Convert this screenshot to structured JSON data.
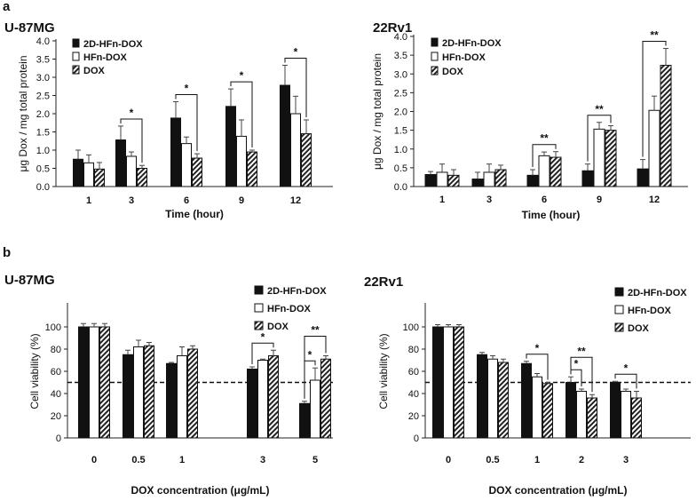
{
  "figure": {
    "panel_labels": [
      "a",
      "b"
    ],
    "legend_labels": [
      "2D-HFn-DOX",
      "HFn-DOX",
      "DOX"
    ]
  },
  "colors": {
    "black": "#111111",
    "white": "#ffffff",
    "hatch": "#222222"
  },
  "chart_data": [
    {
      "type": "bar",
      "panel": "a",
      "title": "U-87MG",
      "xlabel": "Time (hour)",
      "ylabel": "μg Dox / mg total protein",
      "categories": [
        "1",
        "3",
        "6",
        "9",
        "12"
      ],
      "ylim": [
        0,
        4
      ],
      "yticks": [
        "0.0",
        "0.5",
        "1.0",
        "1.5",
        "2.0",
        "2.5",
        "3.0",
        "3.5",
        "4.0"
      ],
      "series": [
        {
          "name": "2D-HFn-DOX",
          "values": [
            0.75,
            1.28,
            1.88,
            2.2,
            2.78
          ],
          "errors": [
            0.25,
            0.38,
            0.45,
            0.48,
            0.55
          ]
        },
        {
          "name": "HFn-DOX",
          "values": [
            0.65,
            0.83,
            1.18,
            1.38,
            2.0
          ],
          "errors": [
            0.22,
            0.12,
            0.18,
            0.45,
            0.48
          ]
        },
        {
          "name": "DOX",
          "values": [
            0.48,
            0.5,
            0.78,
            0.95,
            1.45
          ],
          "errors": [
            0.18,
            0.08,
            0.12,
            0.05,
            0.38
          ]
        }
      ],
      "significance": [
        {
          "label": "*",
          "category": "3",
          "from": 0,
          "to": 2
        },
        {
          "label": "*",
          "category": "6",
          "from": 0,
          "to": 2
        },
        {
          "label": "*",
          "category": "9",
          "from": 0,
          "to": 2
        },
        {
          "label": "*",
          "category": "12",
          "from": 0,
          "to": 2
        }
      ]
    },
    {
      "type": "bar",
      "panel": "a",
      "title": "22Rv1",
      "xlabel": "Time (hour)",
      "ylabel": "μg Dox / mg total protein",
      "categories": [
        "1",
        "3",
        "6",
        "9",
        "12"
      ],
      "ylim": [
        0,
        4
      ],
      "yticks": [
        "0.0",
        "0.5",
        "1.0",
        "1.5",
        "2.0",
        "2.5",
        "3.0",
        "3.5",
        "4.0"
      ],
      "series": [
        {
          "name": "2D-HFn-DOX",
          "values": [
            0.32,
            0.2,
            0.3,
            0.42,
            0.47
          ],
          "errors": [
            0.08,
            0.18,
            0.15,
            0.18,
            0.25
          ]
        },
        {
          "name": "HFn-DOX",
          "values": [
            0.38,
            0.38,
            0.82,
            1.53,
            2.03
          ],
          "errors": [
            0.22,
            0.22,
            0.1,
            0.18,
            0.38
          ]
        },
        {
          "name": "DOX",
          "values": [
            0.3,
            0.45,
            0.78,
            1.5,
            3.23
          ],
          "errors": [
            0.15,
            0.12,
            0.15,
            0.12,
            0.45
          ]
        }
      ],
      "significance": [
        {
          "label": "**",
          "category": "6",
          "from": 0,
          "to": 2
        },
        {
          "label": "**",
          "category": "9",
          "from": 0,
          "to": 2
        },
        {
          "label": "**",
          "category": "12",
          "from": 0,
          "to": 2
        }
      ]
    },
    {
      "type": "bar",
      "panel": "b",
      "title": "U-87MG",
      "xlabel": "DOX concentration (μg/mL)",
      "ylabel": "Cell viability (%)",
      "categories": [
        "0",
        "0.5",
        "1",
        "3",
        "5"
      ],
      "ylim": [
        0,
        120
      ],
      "yticks": [
        "0",
        "20",
        "40",
        "60",
        "80",
        "100"
      ],
      "reference_line": 50,
      "series": [
        {
          "name": "2D-HFn-DOX",
          "values": [
            100,
            75,
            67,
            62,
            31
          ],
          "errors": [
            3,
            4,
            1,
            2,
            2
          ]
        },
        {
          "name": "HFn-DOX",
          "values": [
            100,
            82,
            74,
            70,
            52
          ],
          "errors": [
            3,
            6,
            8,
            1,
            11
          ]
        },
        {
          "name": "DOX",
          "values": [
            100,
            83,
            80,
            74,
            71
          ],
          "errors": [
            3,
            3,
            3,
            5,
            3
          ]
        }
      ],
      "significance": [
        {
          "label": "*",
          "category": "3",
          "from": 0,
          "to": 2
        },
        {
          "label": "*",
          "category": "5",
          "from": 0,
          "to": 1
        },
        {
          "label": "**",
          "category": "5",
          "from": 0,
          "to": 2
        }
      ]
    },
    {
      "type": "bar",
      "panel": "b",
      "title": "22Rv1",
      "xlabel": "DOX concentration (μg/mL)",
      "ylabel": "Cell viability (%)",
      "categories": [
        "0",
        "0.5",
        "1",
        "2",
        "3"
      ],
      "ylim": [
        0,
        120
      ],
      "yticks": [
        "0",
        "20",
        "40",
        "60",
        "80",
        "100"
      ],
      "reference_line": 50,
      "series": [
        {
          "name": "2D-HFn-DOX",
          "values": [
            100,
            75,
            67,
            50,
            50
          ],
          "errors": [
            2,
            2,
            2,
            5,
            1
          ]
        },
        {
          "name": "HFn-DOX",
          "values": [
            100,
            71,
            55,
            42,
            42
          ],
          "errors": [
            2,
            3,
            3,
            2,
            2
          ]
        },
        {
          "name": "DOX",
          "values": [
            100,
            68,
            49,
            36,
            36
          ],
          "errors": [
            2,
            3,
            1,
            3,
            6
          ]
        }
      ],
      "significance": [
        {
          "label": "*",
          "category": "1",
          "from": 0,
          "to": 2
        },
        {
          "label": "*",
          "category": "2",
          "from": 0,
          "to": 1
        },
        {
          "label": "**",
          "category": "2",
          "from": 0,
          "to": 2
        },
        {
          "label": "*",
          "category": "3",
          "from": 0,
          "to": 2
        }
      ]
    }
  ]
}
